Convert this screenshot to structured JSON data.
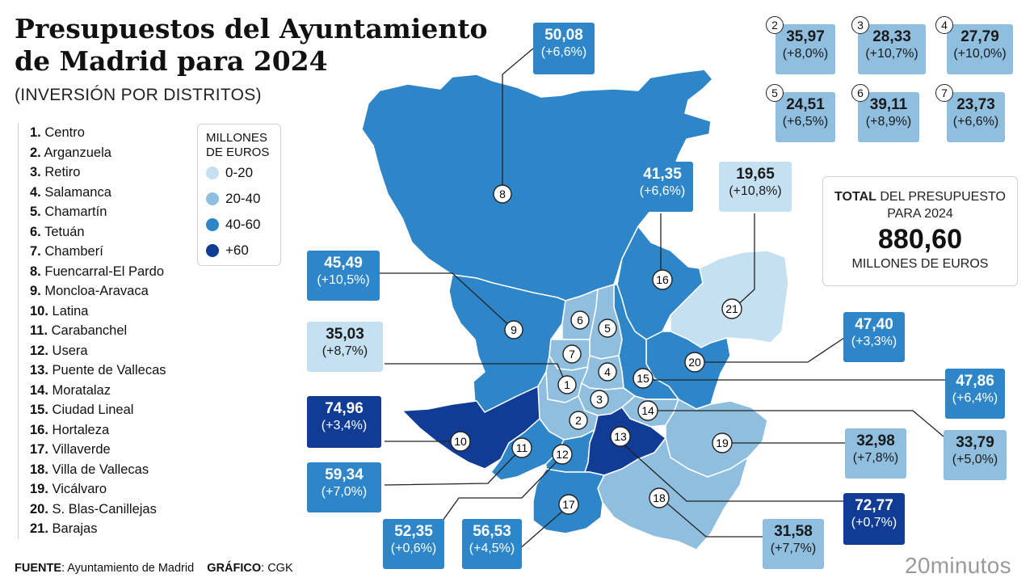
{
  "title_line1": "Presupuestos del Ayuntamiento",
  "title_line2": "de Madrid para 2024",
  "subtitle": "(INVERSIÓN POR DISTRITOS)",
  "district_list": [
    {
      "n": "1.",
      "name": "Centro"
    },
    {
      "n": "2.",
      "name": "Arganzuela"
    },
    {
      "n": "3.",
      "name": "Retiro"
    },
    {
      "n": "4.",
      "name": "Salamanca"
    },
    {
      "n": "5.",
      "name": "Chamartín"
    },
    {
      "n": "6.",
      "name": "Tetuán"
    },
    {
      "n": "7.",
      "name": "Chamberí"
    },
    {
      "n": "8.",
      "name": "Fuencarral-El Pardo"
    },
    {
      "n": "9.",
      "name": "Moncloa-Aravaca"
    },
    {
      "n": "10.",
      "name": "Latina"
    },
    {
      "n": "11.",
      "name": "Carabanchel"
    },
    {
      "n": "12.",
      "name": "Usera"
    },
    {
      "n": "13.",
      "name": "Puente de Vallecas"
    },
    {
      "n": "14.",
      "name": "Moratalaz"
    },
    {
      "n": "15.",
      "name": "Ciudad Lineal"
    },
    {
      "n": "16.",
      "name": "Hortaleza"
    },
    {
      "n": "17.",
      "name": "Villaverde"
    },
    {
      "n": "18.",
      "name": "Villa de Vallecas"
    },
    {
      "n": "19.",
      "name": "Vicálvaro"
    },
    {
      "n": "20.",
      "name": "S. Blas-Canillejas"
    },
    {
      "n": "21.",
      "name": "Barajas"
    }
  ],
  "scale": {
    "heading_line1": "MILLONES",
    "heading_line2": "DE EUROS",
    "colors": {
      "range_0_20": "#c5e0f1",
      "range_20_40": "#8fbedf",
      "range_40_60": "#2e86c8",
      "range_60_plus": "#103c96"
    },
    "items": [
      {
        "label": "0-20",
        "color": "#c5e0f1"
      },
      {
        "label": "20-40",
        "color": "#8fbedf"
      },
      {
        "label": "40-60",
        "color": "#2e86c8"
      },
      {
        "label": "+60",
        "color": "#103c96"
      }
    ]
  },
  "districts": {
    "d1": {
      "num": "1"
    },
    "d2": {
      "num": "2",
      "value": "35,97",
      "change": "(+8,0%)"
    },
    "d3": {
      "num": "3",
      "value": "28,33",
      "change": "(+10,7%)"
    },
    "d4": {
      "num": "4",
      "value": "27,79",
      "change": "(+10,0%)"
    },
    "d5": {
      "num": "5",
      "value": "24,51",
      "change": "(+6,5%)"
    },
    "d6": {
      "num": "6",
      "value": "39,11",
      "change": "(+8,9%)"
    },
    "d7": {
      "num": "7",
      "value": "23,73",
      "change": "(+6,6%)"
    },
    "d8": {
      "num": "8",
      "value": "50,08",
      "change": "(+6,6%)"
    },
    "d9": {
      "num": "9",
      "value": "45,49",
      "change": "(+10,5%)"
    },
    "d10": {
      "num": "10",
      "value": "74,96",
      "change": "(+3,4%)"
    },
    "d11": {
      "num": "11",
      "value": "59,34",
      "change": "(+7,0%)"
    },
    "d12": {
      "num": "12",
      "value": "52,35",
      "change": "(+0,6%)"
    },
    "d13": {
      "num": "13",
      "value": "72,77",
      "change": "(+0,7%)"
    },
    "d14": {
      "num": "14",
      "value": "33,79",
      "change": "(+5,0%)"
    },
    "d15": {
      "num": "15",
      "value": "47,86",
      "change": "(+6,4%)"
    },
    "d16": {
      "num": "16",
      "value": "41,35",
      "change": "(+6,6%)"
    },
    "d17": {
      "num": "17",
      "value": "56,53",
      "change": "(+4,5%)"
    },
    "d18": {
      "num": "18",
      "value": "31,58",
      "change": "(+7,7%)"
    },
    "d19": {
      "num": "19",
      "value": "32,98",
      "change": "(+7,8%)"
    },
    "d20": {
      "num": "20",
      "value": "47,40",
      "change": "(+3,3%)"
    },
    "d21": {
      "num": "21",
      "value": "19,65",
      "change": "(+10,8%)"
    },
    "d1_value": {
      "value": "35,03",
      "change": "(+8,7%)"
    }
  },
  "total": {
    "label_bold": "TOTAL",
    "label_rest": " DEL PRESUPUESTO",
    "label_line2": "PARA 2024",
    "amount": "880,60",
    "unit": "MILLONES DE EUROS"
  },
  "footer": {
    "source_label": "FUENTE",
    "source_text": ": Ayuntamiento de Madrid",
    "graphic_label": "GRÁFICO",
    "graphic_text": ": CGK"
  },
  "brand": "20minutos"
}
